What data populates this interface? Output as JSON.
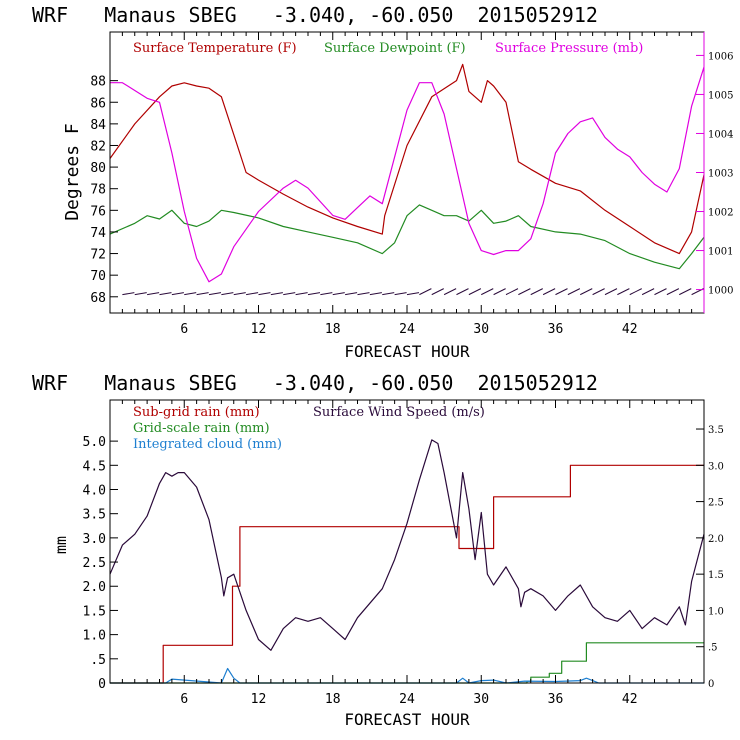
{
  "colors": {
    "temperature": "#b00000",
    "dewpoint": "#228b22",
    "pressure": "#e000e0",
    "wind": "#2a0a3a",
    "subgrid": "#b00000",
    "gridscale": "#228b22",
    "cloud": "#1e7fd0"
  },
  "chart_data": [
    {
      "type": "line",
      "title": "WRF   Manaus SBEG   -3.040, -60.050  2015052912",
      "xlabel": "FORECAST HOUR",
      "ylabel": "Degrees F",
      "xlim": [
        0,
        48
      ],
      "ylim": [
        66.5,
        92.5
      ],
      "y2lim": [
        999.4,
        1006.6
      ],
      "xticks": [
        "6",
        "12",
        "18",
        "24",
        "30",
        "36",
        "42"
      ],
      "xtick_values": [
        6,
        12,
        18,
        24,
        30,
        36,
        42
      ],
      "yticks": [
        "68",
        "70",
        "72",
        "74",
        "76",
        "78",
        "80",
        "82",
        "84",
        "86",
        "88"
      ],
      "ytick_values": [
        68,
        70,
        72,
        74,
        76,
        78,
        80,
        82,
        84,
        86,
        88
      ],
      "y2ticks": [
        "1000",
        "1001",
        "1002",
        "1003",
        "1004",
        "1005",
        "1006"
      ],
      "y2tick_values": [
        1000,
        1001,
        1002,
        1003,
        1004,
        1005,
        1006
      ],
      "legend": [
        "Surface Temperature (F)",
        "Surface Dewpoint (F)",
        "Surface Pressure (mb)"
      ],
      "series": [
        {
          "name": "Surface Temperature (F)",
          "x": [
            0,
            2,
            4,
            5,
            6,
            7,
            8,
            9,
            10,
            11,
            12,
            14,
            16,
            18,
            20,
            22,
            22.2,
            24,
            26,
            28,
            28.5,
            29,
            30,
            30.5,
            31,
            32,
            33,
            34,
            36,
            38,
            40,
            42,
            44,
            46,
            47,
            48
          ],
          "values": [
            80.8,
            84,
            86.5,
            87.5,
            87.8,
            87.5,
            87.3,
            86.5,
            83,
            79.5,
            78.8,
            77.5,
            76.3,
            75.3,
            74.5,
            73.8,
            75.5,
            82,
            86.5,
            88,
            89.5,
            87,
            86,
            88,
            87.5,
            86,
            80.5,
            79.8,
            78.5,
            77.8,
            76,
            74.5,
            73,
            72,
            74,
            79.3
          ]
        },
        {
          "name": "Surface Dewpoint (F)",
          "x": [
            0,
            2,
            3,
            4,
            5,
            6,
            7,
            8,
            9,
            10,
            12,
            14,
            16,
            18,
            20,
            22,
            23,
            24,
            25,
            26,
            27,
            28,
            29,
            30,
            31,
            32,
            33,
            34,
            36,
            38,
            40,
            42,
            44,
            46,
            47,
            48
          ],
          "values": [
            73.8,
            74.8,
            75.5,
            75.2,
            76,
            74.8,
            74.5,
            75,
            76,
            75.8,
            75.3,
            74.5,
            74,
            73.5,
            73,
            72,
            73,
            75.5,
            76.5,
            76,
            75.5,
            75.5,
            75,
            76,
            74.8,
            75,
            75.5,
            74.5,
            74,
            73.8,
            73.2,
            72,
            71.2,
            70.6,
            72,
            73.5
          ]
        },
        {
          "name": "Surface Pressure (mb)",
          "x": [
            0,
            1,
            2,
            3,
            4,
            5,
            6,
            7,
            8,
            9,
            10,
            12,
            14,
            15,
            16,
            18,
            19,
            20,
            21,
            22,
            24,
            25,
            26,
            27,
            28,
            29,
            30,
            31,
            32,
            33,
            34,
            35,
            36,
            37,
            38,
            39,
            40,
            41,
            42,
            43,
            44,
            45,
            46,
            47,
            48
          ],
          "values": [
            1005.3,
            1005.3,
            1005.1,
            1004.9,
            1004.8,
            1003.5,
            1002,
            1000.8,
            1000.2,
            1000.4,
            1001.1,
            1002,
            1002.6,
            1002.8,
            1002.6,
            1001.9,
            1001.8,
            1002.1,
            1002.4,
            1002.2,
            1004.6,
            1005.3,
            1005.3,
            1004.5,
            1003.1,
            1001.7,
            1001,
            1000.9,
            1001,
            1001,
            1001.3,
            1002.2,
            1003.5,
            1004,
            1004.3,
            1004.4,
            1003.9,
            1003.6,
            1003.4,
            1003,
            1002.7,
            1002.5,
            1003.1,
            1004.7,
            1005.7
          ]
        }
      ]
    },
    {
      "type": "line",
      "title": "WRF   Manaus SBEG   -3.040, -60.050  2015052912",
      "xlabel": "FORECAST HOUR",
      "ylabel": "mm",
      "xlim": [
        0,
        48
      ],
      "ylim": [
        0,
        5.85
      ],
      "y2lim": [
        0,
        3.9
      ],
      "xticks": [
        "6",
        "12",
        "18",
        "24",
        "30",
        "36",
        "42"
      ],
      "xtick_values": [
        6,
        12,
        18,
        24,
        30,
        36,
        42
      ],
      "yticks": [
        "0",
        ".5",
        "1.0",
        "1.5",
        "2.0",
        "2.5",
        "3.0",
        "3.5",
        "4.0",
        "4.5",
        "5.0"
      ],
      "ytick_values": [
        0,
        0.5,
        1.0,
        1.5,
        2.0,
        2.5,
        3.0,
        3.5,
        4.0,
        4.5,
        5.0
      ],
      "y2ticks": [
        "0",
        ".5",
        "1.0",
        "1.5",
        "2.0",
        "2.5",
        "3.0",
        "3.5"
      ],
      "y2tick_values": [
        0,
        0.5,
        1.0,
        1.5,
        2.0,
        2.5,
        3.0,
        3.5
      ],
      "legend": [
        "Sub-grid rain (mm)",
        "Surface Wind Speed (m/s)",
        "Grid-scale rain (mm)",
        "Integrated cloud (mm)"
      ],
      "series": [
        {
          "name": "Sub-grid rain (mm)",
          "step": true,
          "x": [
            0,
            4.3,
            9.1,
            9.9,
            10.5,
            27.8,
            28.2,
            30,
            31,
            37.2,
            48
          ],
          "values": [
            0,
            0.78,
            0.78,
            2.0,
            3.23,
            3.23,
            2.78,
            2.78,
            3.85,
            4.5,
            4.5
          ]
        },
        {
          "name": "Surface Wind Speed (m/s)",
          "x": [
            0,
            1,
            2,
            3,
            4,
            4.5,
            5,
            5.5,
            6,
            7,
            8,
            9,
            9.2,
            9.5,
            10,
            11,
            12,
            13,
            14,
            15,
            16,
            17,
            18,
            19,
            20,
            21,
            22,
            23,
            24,
            25,
            26,
            26.5,
            27,
            28,
            28.5,
            29,
            29.5,
            30,
            30.5,
            31,
            32,
            33,
            33.2,
            33.5,
            34,
            35,
            36,
            37,
            38,
            39,
            40,
            41,
            42,
            43,
            44,
            45,
            46,
            46.5,
            47,
            48
          ],
          "values": [
            1.5,
            1.9,
            2.05,
            2.3,
            2.75,
            2.9,
            2.85,
            2.9,
            2.9,
            2.7,
            2.25,
            1.45,
            1.2,
            1.45,
            1.5,
            1.0,
            0.6,
            0.45,
            0.75,
            0.9,
            0.85,
            0.9,
            0.75,
            0.6,
            0.9,
            1.1,
            1.3,
            1.7,
            2.2,
            2.8,
            3.35,
            3.3,
            2.9,
            2.0,
            2.9,
            2.4,
            1.7,
            2.35,
            1.5,
            1.35,
            1.6,
            1.3,
            1.05,
            1.25,
            1.3,
            1.2,
            1.0,
            1.2,
            1.35,
            1.05,
            0.9,
            0.85,
            1.0,
            0.75,
            0.9,
            0.8,
            1.05,
            0.8,
            1.4,
            2.05
          ]
        },
        {
          "name": "Grid-scale rain (mm)",
          "step": true,
          "x": [
            0,
            33.7,
            34,
            35.5,
            36.5,
            38.5,
            48
          ],
          "values": [
            0,
            0.04,
            0.12,
            0.2,
            0.45,
            0.83,
            0.83
          ]
        },
        {
          "name": "Integrated cloud (mm)",
          "x": [
            0,
            4.5,
            5,
            9,
            9.5,
            10,
            10.5,
            11,
            28,
            28.5,
            29,
            30,
            31,
            32,
            33.5,
            36,
            38,
            38.5,
            39,
            39.5,
            48
          ],
          "values": [
            0,
            0,
            0.08,
            0,
            0.3,
            0.1,
            0,
            0,
            0,
            0.1,
            0,
            0.05,
            0.06,
            0,
            0.04,
            0.03,
            0.05,
            0.1,
            0.05,
            0,
            0
          ]
        }
      ]
    }
  ]
}
